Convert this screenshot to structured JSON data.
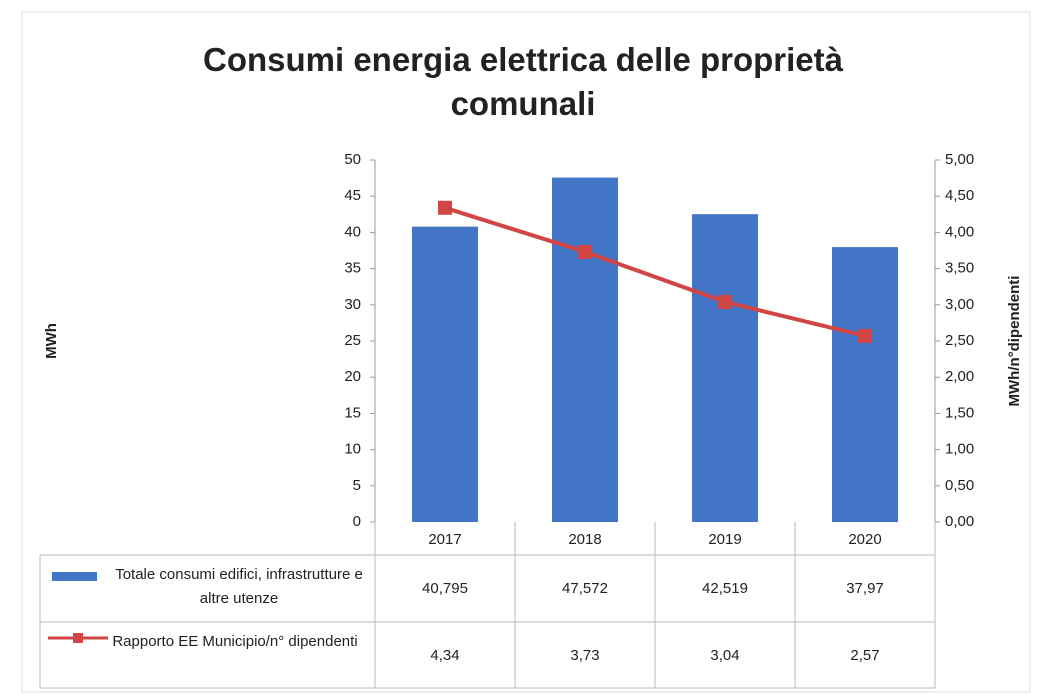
{
  "chart_data": {
    "type": "bar",
    "title": "Consumi energia elettrica delle proprietà comunali",
    "ylabel": "MWh",
    "y2label": "MWh/n°dipendenti",
    "categories": [
      "2017",
      "2018",
      "2019",
      "2020"
    ],
    "series": [
      {
        "name": "Totale consumi edifici, infrastrutture e altre utenze",
        "color": "#4275c6",
        "values": [
          40.795,
          47.572,
          42.519,
          37.97
        ],
        "value_labels": [
          "40,795",
          "47,572",
          "42,519",
          "37,97"
        ]
      },
      {
        "name": "Rapporto EE Municipio/n° dipendenti",
        "color": "#d24545",
        "type": "line",
        "axis": "y2",
        "values": [
          4.34,
          3.73,
          3.04,
          2.57
        ],
        "value_labels": [
          "4,34",
          "3,73",
          "3,04",
          "2,57"
        ]
      }
    ],
    "ylim": [
      0,
      50
    ],
    "yticks": [
      0,
      5,
      10,
      15,
      20,
      25,
      30,
      35,
      40,
      45,
      50
    ],
    "y2lim": [
      0,
      5
    ],
    "y2ticks": [
      {
        "value": 0,
        "label": "0,00"
      },
      {
        "value": 0.5,
        "label": "0,50"
      },
      {
        "value": 1,
        "label": "1,00"
      },
      {
        "value": 1.5,
        "label": "1,50"
      },
      {
        "value": 2,
        "label": "2,00"
      },
      {
        "value": 2.5,
        "label": "2,50"
      },
      {
        "value": 3,
        "label": "3,00"
      },
      {
        "value": 3.5,
        "label": "3,50"
      },
      {
        "value": 4,
        "label": "4,00"
      },
      {
        "value": 4.5,
        "label": "4,50"
      },
      {
        "value": 5,
        "label": "5,00"
      }
    ],
    "grid": false
  }
}
